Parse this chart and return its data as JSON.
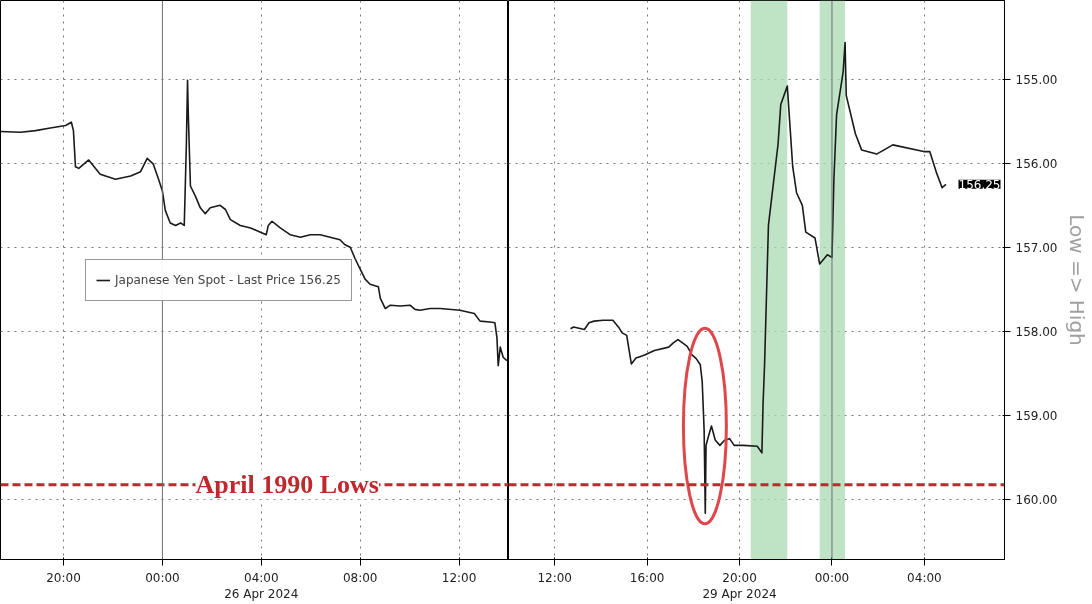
{
  "chart_data": [
    {
      "type": "line",
      "x": [
        "2024-04-25T17:27",
        "2024-04-25T18:16",
        "2024-04-25T18:52",
        "2024-04-25T19:28",
        "2024-04-25T20:05",
        "2024-04-25T20:19",
        "2024-04-25T20:24",
        "2024-04-25T20:29",
        "2024-04-25T20:37",
        "2024-04-25T21:01",
        "2024-04-25T21:29",
        "2024-04-25T22:06",
        "2024-04-25T22:43",
        "2024-04-25T23:07",
        "2024-04-25T23:23",
        "2024-04-25T23:38",
        "2024-04-25T23:50",
        "2024-04-26T00:00",
        "2024-04-26T00:07",
        "2024-04-26T00:19",
        "2024-04-26T00:32",
        "2024-04-26T00:44",
        "2024-04-26T00:53",
        "2024-04-26T00:58",
        "2024-04-26T01:01",
        "2024-04-26T01:03",
        "2024-04-26T01:08",
        "2024-04-26T01:20",
        "2024-04-26T01:32",
        "2024-04-26T01:44",
        "2024-04-26T01:56",
        "2024-04-26T02:20",
        "2024-04-26T02:33",
        "2024-04-26T02:45",
        "2024-04-26T03:09",
        "2024-04-26T03:34",
        "2024-04-26T03:58",
        "2024-04-26T04:12",
        "2024-04-26T04:17",
        "2024-04-26T04:26",
        "2024-04-26T04:46",
        "2024-04-26T05:10",
        "2024-04-26T05:35",
        "2024-04-26T05:59",
        "2024-04-26T06:23",
        "2024-04-26T06:47",
        "2024-04-26T07:11",
        "2024-04-26T07:23",
        "2024-04-26T07:36",
        "2024-04-26T07:48",
        "2024-04-26T08:00",
        "2024-04-26T08:12",
        "2024-04-26T08:24",
        "2024-04-26T08:44",
        "2024-04-26T08:49",
        "2024-04-26T09:01",
        "2024-04-26T09:13",
        "2024-04-26T09:37",
        "2024-04-26T10:01",
        "2024-04-26T10:13",
        "2024-04-26T10:25",
        "2024-04-26T10:50",
        "2024-04-26T11:14",
        "2024-04-26T12:02",
        "2024-04-26T12:37",
        "2024-04-26T12:51",
        "2024-04-26T13:15",
        "2024-04-26T13:27",
        "2024-04-26T13:32",
        "2024-04-26T13:35",
        "2024-04-26T13:40",
        "2024-04-26T13:47",
        "2024-04-26T13:56"
      ],
      "series": [
        {
          "name": "Japanese Yen Spot - Last Price 156.25",
          "color": "#1a1a1a",
          "values": [
            155.62,
            155.63,
            155.61,
            155.58,
            155.55,
            155.51,
            155.61,
            156.04,
            156.06,
            155.96,
            156.13,
            156.19,
            156.15,
            156.1,
            155.94,
            156.01,
            156.18,
            156.33,
            156.56,
            156.71,
            156.74,
            156.71,
            156.74,
            155.8,
            155.01,
            155.45,
            156.27,
            156.39,
            156.53,
            156.6,
            156.53,
            156.5,
            156.55,
            156.67,
            156.74,
            156.77,
            156.82,
            156.85,
            156.74,
            156.69,
            156.77,
            156.85,
            156.88,
            156.85,
            156.85,
            156.88,
            156.91,
            156.97,
            157.0,
            157.14,
            157.26,
            157.38,
            157.44,
            157.47,
            157.61,
            157.73,
            157.69,
            157.7,
            157.69,
            157.74,
            157.75,
            157.73,
            157.73,
            157.75,
            157.79,
            157.88,
            157.89,
            157.9,
            158.08,
            158.41,
            158.19,
            158.31,
            158.35
          ]
        }
      ],
      "xlim": [
        "2024-04-25T17:27",
        "2024-04-26T14:00"
      ],
      "ylim": [
        160.72,
        154.06
      ],
      "xticks": [
        {
          "value": "2024-04-25T20:00",
          "label": "20:00"
        },
        {
          "value": "2024-04-26T00:00",
          "label": "00:00"
        },
        {
          "value": "2024-04-26T04:00",
          "label": "04:00\n26 Apr 2024"
        },
        {
          "value": "2024-04-26T08:00",
          "label": "08:00"
        },
        {
          "value": "2024-04-26T12:00",
          "label": "12:00"
        }
      ],
      "yticks": [
        155,
        156,
        157,
        158,
        159,
        160
      ],
      "tick_labels": "x",
      "grid": true,
      "legend": "left",
      "ref_lines": [
        {
          "axis": "y",
          "value": 159.83,
          "label": "April 1990 Lows",
          "color": "#c0282d",
          "line_style": "dashed"
        },
        {
          "axis": "x",
          "value": "2024-04-26T00:00",
          "color": "#707070",
          "line_style": "solid"
        }
      ]
    },
    {
      "type": "line",
      "ylabel": "Low => High",
      "x": [
        "2024-04-29T12:41",
        "2024-04-29T12:49",
        "2024-04-29T13:17",
        "2024-04-29T13:29",
        "2024-04-29T13:42",
        "2024-04-29T14:06",
        "2024-04-29T14:31",
        "2024-04-29T14:47",
        "2024-04-29T14:55",
        "2024-04-29T15:07",
        "2024-04-29T15:14",
        "2024-04-29T15:19",
        "2024-04-29T15:31",
        "2024-04-29T15:43",
        "2024-04-29T15:55",
        "2024-04-29T16:19",
        "2024-04-29T16:56",
        "2024-04-29T17:08",
        "2024-04-29T17:20",
        "2024-04-29T17:32",
        "2024-04-29T17:44",
        "2024-04-29T17:56",
        "2024-04-29T18:08",
        "2024-04-29T18:18",
        "2024-04-29T18:23",
        "2024-04-29T18:28",
        "2024-04-29T18:31",
        "2024-04-29T18:33",
        "2024-04-29T18:40",
        "2024-04-29T18:47",
        "2024-04-29T18:57",
        "2024-04-29T19:09",
        "2024-04-29T19:21",
        "2024-04-29T19:34",
        "2024-04-29T19:46",
        "2024-04-29T20:10",
        "2024-04-29T20:46",
        "2024-04-29T20:58",
        "2024-04-29T21:01",
        "2024-04-29T21:05",
        "2024-04-29T21:15",
        "2024-04-29T21:40",
        "2024-04-29T21:47",
        "2024-04-29T22:04",
        "2024-04-29T22:18",
        "2024-04-29T22:28",
        "2024-04-29T22:43",
        "2024-04-29T22:52",
        "2024-04-29T23:16",
        "2024-04-29T23:28",
        "2024-04-29T23:48",
        "2024-04-30T00:00",
        "2024-04-30T00:05",
        "2024-04-30T00:12",
        "2024-04-30T00:29",
        "2024-04-30T00:34",
        "2024-04-30T00:37",
        "2024-04-30T01:01",
        "2024-04-30T01:17",
        "2024-04-30T01:56",
        "2024-04-30T02:38",
        "2024-04-30T03:58",
        "2024-04-30T04:14",
        "2024-04-30T04:32",
        "2024-04-30T04:46",
        "2024-04-30T04:56"
      ],
      "series": [
        {
          "color": "#1a1a1a",
          "values": [
            157.97,
            157.95,
            157.98,
            157.9,
            157.88,
            157.87,
            157.87,
            157.96,
            158.02,
            158.05,
            158.25,
            158.39,
            158.32,
            158.3,
            158.28,
            158.23,
            158.19,
            158.14,
            158.1,
            158.14,
            158.18,
            158.28,
            158.33,
            158.4,
            158.6,
            159.18,
            160.17,
            159.36,
            159.24,
            159.13,
            159.3,
            159.36,
            159.3,
            159.28,
            159.36,
            159.36,
            159.37,
            159.45,
            158.87,
            158.39,
            156.74,
            155.77,
            155.3,
            155.08,
            156.04,
            156.35,
            156.5,
            156.82,
            156.89,
            157.2,
            157.09,
            157.12,
            156.19,
            155.42,
            154.91,
            154.56,
            155.19,
            155.65,
            155.84,
            155.89,
            155.78,
            155.86,
            155.86,
            156.12,
            156.29,
            156.25
          ]
        }
      ],
      "xlim": [
        "2024-04-29T10:00",
        "2024-04-30T07:28"
      ],
      "ylim": [
        160.72,
        154.06
      ],
      "xticks": [
        {
          "value": "2024-04-29T12:00",
          "label": "12:00"
        },
        {
          "value": "2024-04-29T16:00",
          "label": "16:00"
        },
        {
          "value": "2024-04-29T20:00",
          "label": "20:00\n29 Apr 2024"
        },
        {
          "value": "2024-04-30T00:00",
          "label": "00:00"
        },
        {
          "value": "2024-04-30T04:00",
          "label": "04:00"
        }
      ],
      "yticks": [
        {
          "value": 155,
          "label": "155.00"
        },
        {
          "value": 156,
          "label": "156.00"
        },
        {
          "value": 157,
          "label": "157.00"
        },
        {
          "value": 158,
          "label": "158.00"
        },
        {
          "value": 159,
          "label": "159.00"
        },
        {
          "value": 160,
          "label": "160.00"
        }
      ],
      "grid": true,
      "ref_lines": [
        {
          "axis": "y",
          "value": 159.83,
          "color": "#c0282d",
          "line_style": "dashed"
        },
        {
          "axis": "x",
          "value": "2024-04-30T00:00",
          "color": "#707070",
          "line_style": "solid"
        }
      ],
      "bands": [
        {
          "axis": "x",
          "from": "2024-04-29T20:29",
          "to": "2024-04-29T22:04",
          "color": "#a9dbb1"
        },
        {
          "axis": "x",
          "from": "2024-04-29T23:28",
          "to": "2024-04-30T00:34",
          "color": "#a9dbb1"
        }
      ],
      "annotations": [
        "156.25"
      ]
    }
  ]
}
